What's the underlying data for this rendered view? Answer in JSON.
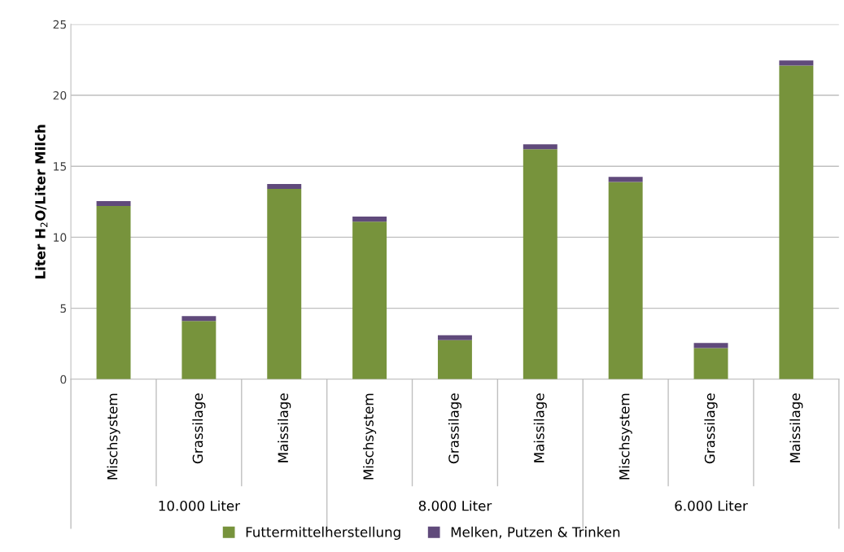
{
  "chart_data": {
    "type": "bar",
    "stacked": true,
    "ylabel": "Liter H$_{2}$O/Liter Milch",
    "categories": [
      "Mischsystem",
      "Grassilage",
      "Maissilage",
      "Mischsystem",
      "Grassilage",
      "Maissilage",
      "Mischsystem",
      "Grassilage",
      "Maissilage"
    ],
    "series": [
      {
        "name": "Futtermittelherstellung",
        "color": "#77933c",
        "values": [
          12.2,
          4.1,
          13.4,
          11.1,
          2.75,
          16.2,
          13.9,
          2.2,
          22.1
        ]
      },
      {
        "name": "Melken, Putzen & Trinken",
        "color": "#604a7b",
        "values": [
          0.35,
          0.35,
          0.35,
          0.35,
          0.35,
          0.35,
          0.35,
          0.35,
          0.35
        ]
      }
    ],
    "ylim": [
      0,
      25
    ],
    "yticks": [
      0,
      5,
      10,
      15,
      20,
      25
    ],
    "grid": "y",
    "legend": "bottom",
    "annotations": [
      "10.000 Liter",
      "8.000 Liter",
      "6.000 Liter"
    ]
  }
}
